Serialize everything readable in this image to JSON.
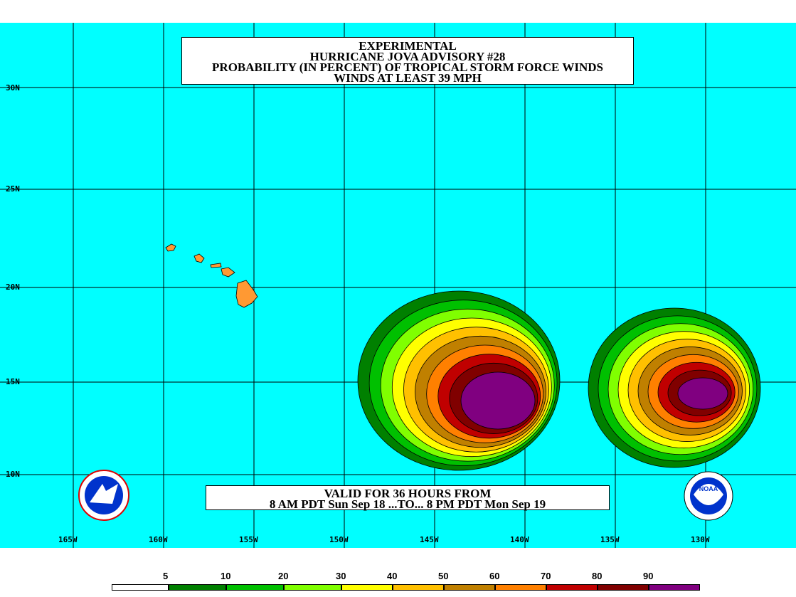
{
  "title": {
    "line1": "EXPERIMENTAL",
    "line2": "HURRICANE JOVA ADVISORY #28",
    "line3": "PROBABILITY (IN PERCENT) OF TROPICAL STORM FORCE WINDS",
    "line4": "WINDS AT LEAST 39 MPH"
  },
  "valid": {
    "line1": "VALID FOR 36 HOURS FROM",
    "line2": "8 AM PDT Sun Sep 18 ...TO... 8 PM PDT Mon Sep 19"
  },
  "lat_labels": [
    "30N",
    "25N",
    "20N",
    "15N",
    "10N"
  ],
  "lon_labels": [
    "165W",
    "160W",
    "155W",
    "150W",
    "145W",
    "140W",
    "135W",
    "130W"
  ],
  "legend": {
    "numbers": [
      "5",
      "10",
      "20",
      "30",
      "40",
      "50",
      "60",
      "70",
      "80",
      "90"
    ],
    "colors": [
      "#ffffff",
      "#008000",
      "#00c000",
      "#80ff00",
      "#ffff00",
      "#ffc000",
      "#c08000",
      "#ff8000",
      "#c00000",
      "#800000",
      "#800080"
    ]
  },
  "colors": {
    "ocean": "#00ffff",
    "land": "#ff9933",
    "contour_levels": [
      "#008000",
      "#00c000",
      "#80ff00",
      "#ffff00",
      "#ffc000",
      "#c08000",
      "#ff8000",
      "#c00000",
      "#800000",
      "#800080"
    ]
  },
  "logos": {
    "left": "nws-logo",
    "right": "noaa-logo"
  }
}
